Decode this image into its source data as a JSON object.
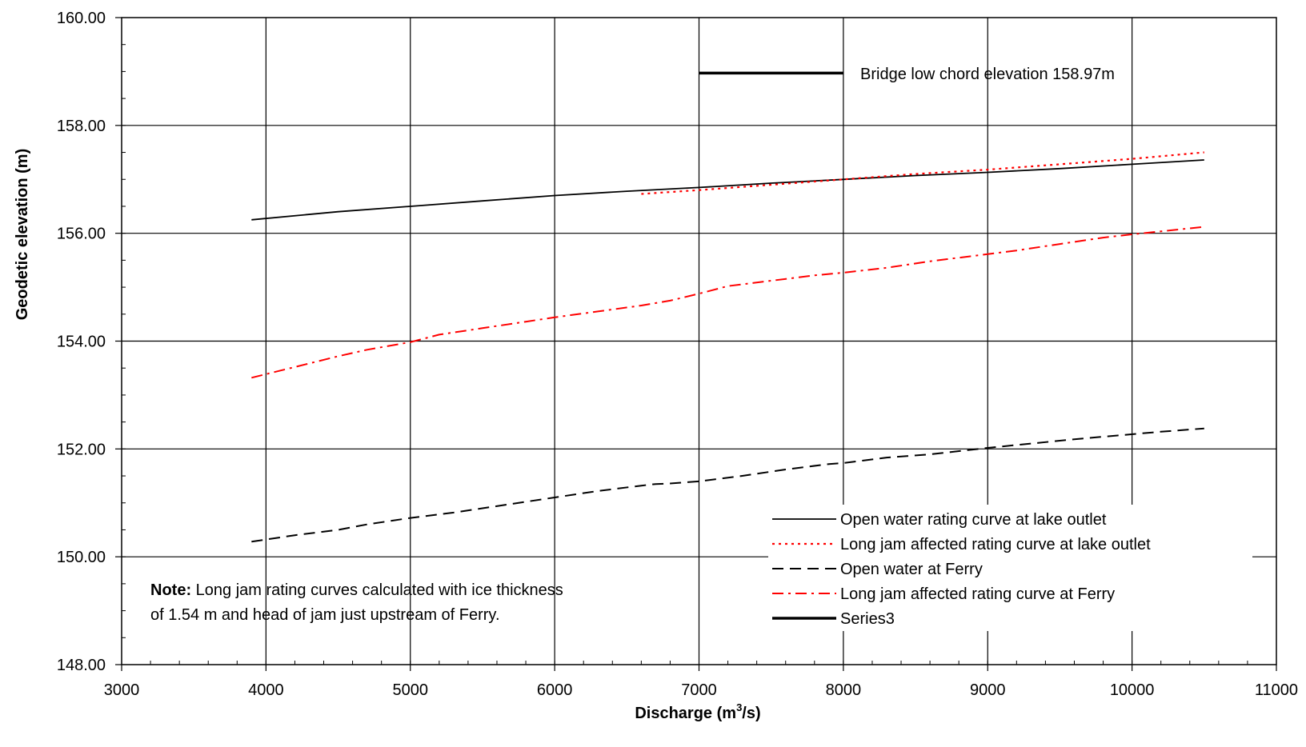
{
  "chart_data": {
    "type": "line",
    "title": "",
    "xlabel_main": "Discharge (m",
    "xlabel_sup": "3",
    "xlabel_tail": "/s)",
    "ylabel": "Geodetic elevation (m)",
    "xlim": [
      3000,
      11000
    ],
    "ylim": [
      148,
      160
    ],
    "x_ticks": [
      "3000",
      "4000",
      "5000",
      "6000",
      "7000",
      "8000",
      "9000",
      "10000",
      "11000"
    ],
    "y_ticks": [
      "148.00",
      "150.00",
      "152.00",
      "154.00",
      "156.00",
      "158.00",
      "160.00"
    ],
    "grid": true,
    "legend_position": "bottom-right",
    "series": [
      {
        "name": "Open water rating curve at lake outlet",
        "color": "#000000",
        "style": "solid",
        "x": [
          3900,
          4500,
          5000,
          5500,
          6000,
          6500,
          7000,
          7500,
          8000,
          8500,
          9000,
          9500,
          10000,
          10500
        ],
        "y": [
          156.25,
          156.4,
          156.5,
          156.6,
          156.7,
          156.78,
          156.85,
          156.93,
          157.0,
          157.07,
          157.13,
          157.2,
          157.28,
          157.36
        ]
      },
      {
        "name": "Long jam affected rating curve at lake outlet",
        "color": "#ff0000",
        "style": "dotted",
        "x": [
          6600,
          7000,
          7500,
          8000,
          8500,
          9000,
          9500,
          10000,
          10500
        ],
        "y": [
          156.73,
          156.8,
          156.9,
          157.0,
          157.1,
          157.18,
          157.28,
          157.38,
          157.5
        ]
      },
      {
        "name": "Open water at Ferry",
        "color": "#000000",
        "style": "dashed",
        "x": [
          3900,
          4200,
          4500,
          4700,
          5000,
          5300,
          5500,
          5800,
          6000,
          6300,
          6600,
          6700,
          6800,
          7000,
          7300,
          7600,
          7900,
          8000,
          8300,
          8600,
          9000,
          9300,
          9600,
          9900,
          10200,
          10500
        ],
        "y": [
          150.28,
          150.4,
          150.5,
          150.6,
          150.72,
          150.82,
          150.9,
          151.02,
          151.1,
          151.22,
          151.32,
          151.35,
          151.36,
          151.4,
          151.5,
          151.62,
          151.72,
          151.74,
          151.84,
          151.9,
          152.02,
          152.1,
          152.18,
          152.25,
          152.32,
          152.38
        ]
      },
      {
        "name": "Long jam affected rating curve at Ferry",
        "color": "#ff0000",
        "style": "dashdot",
        "x": [
          3900,
          4200,
          4500,
          4700,
          5000,
          5200,
          5500,
          5800,
          6000,
          6300,
          6600,
          6800,
          7000,
          7200,
          7500,
          7800,
          8000,
          8300,
          8600,
          8900,
          9200,
          9500,
          9800,
          10000,
          10500
        ],
        "y": [
          153.32,
          153.52,
          153.72,
          153.84,
          153.98,
          154.12,
          154.24,
          154.36,
          154.44,
          154.55,
          154.66,
          154.75,
          154.88,
          155.02,
          155.12,
          155.22,
          155.27,
          155.36,
          155.48,
          155.58,
          155.68,
          155.8,
          155.92,
          155.98,
          156.12
        ]
      },
      {
        "name": "Series3",
        "color": "#000000",
        "style": "thick",
        "x": [
          7000,
          8000
        ],
        "y": [
          158.97,
          158.97
        ]
      }
    ],
    "annotation": "Bridge low chord elevation 158.97m",
    "note_bold": "Note:",
    "note_line1": " Long jam rating curves calculated with ice thickness",
    "note_line2": "of 1.54 m and head of jam just upstream of Ferry."
  }
}
